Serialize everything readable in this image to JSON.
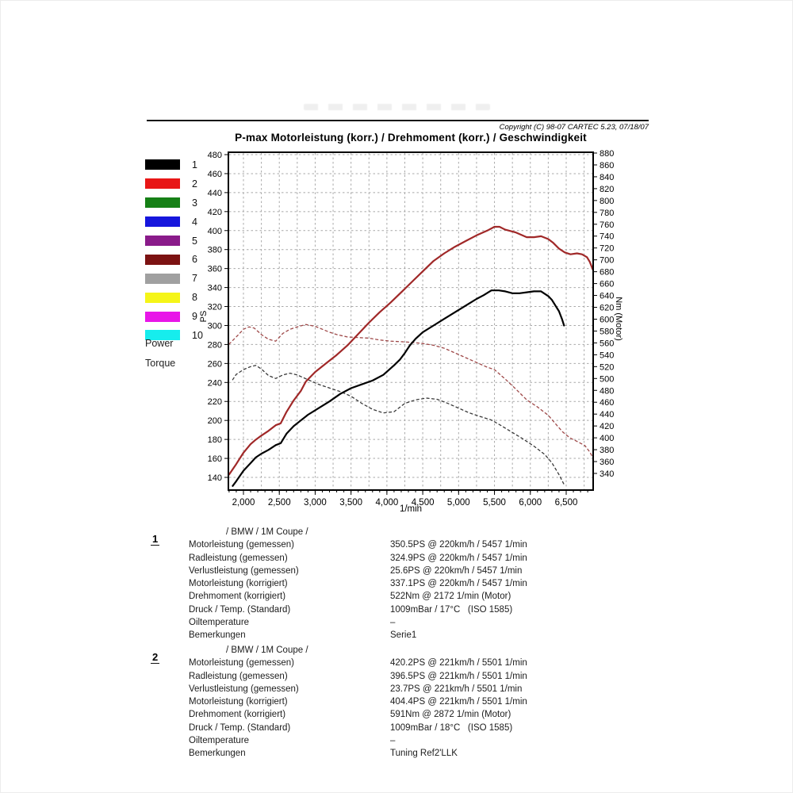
{
  "page": {
    "copyright": "Copyright (C) 98-07 CARTEC 5.23, 07/18/07",
    "title": "P-max Motorleistung (korr.) / Drehmoment (korr.) / Geschwindigkeit"
  },
  "legend": {
    "items": [
      {
        "label": "1",
        "color": "#000000"
      },
      {
        "label": "2",
        "color": "#e81616"
      },
      {
        "label": "3",
        "color": "#168016"
      },
      {
        "label": "4",
        "color": "#1616dd"
      },
      {
        "label": "5",
        "color": "#8a1b8a"
      },
      {
        "label": "6",
        "color": "#7c1212"
      },
      {
        "label": "7",
        "color": "#a0a0a0"
      },
      {
        "label": "8",
        "color": "#f5f518"
      },
      {
        "label": "9",
        "color": "#e816e8"
      },
      {
        "label": "10",
        "color": "#16eded"
      }
    ],
    "power_label": "Power",
    "torque_label": "Torque"
  },
  "chart_data": {
    "type": "line",
    "title": "P-max Motorleistung (korr.) / Drehmoment (korr.) / Geschwindigkeit",
    "x_label": "1/min",
    "y_left_label": "PS",
    "y_right_label": "Nm (Motor)",
    "x_range": [
      1790,
      6876
    ],
    "x_ticks": [
      {
        "value": 2000,
        "label": "2,000"
      },
      {
        "value": 2500,
        "label": "2,500"
      },
      {
        "value": 3000,
        "label": "3,000"
      },
      {
        "value": 3500,
        "label": "3,500"
      },
      {
        "value": 4000,
        "label": "4,000"
      },
      {
        "value": 4500,
        "label": "4,500"
      },
      {
        "value": 5000,
        "label": "5,000"
      },
      {
        "value": 5500,
        "label": "5,500"
      },
      {
        "value": 6000,
        "label": "6,000"
      },
      {
        "value": 6500,
        "label": "6,500"
      }
    ],
    "x_grid_step": 250,
    "x_minor_tick_step": 100,
    "y_left_axis": {
      "min": 140,
      "max": 480,
      "step": 20
    },
    "y_right_axis": {
      "min": 340,
      "max": 880,
      "step": 20
    },
    "grid": true,
    "legend_position": "left",
    "series": [
      {
        "name": "torque-stock",
        "run": 1,
        "unit": "Nm",
        "axis": "right",
        "style": "dashed",
        "color": "#3a3a3a",
        "points": [
          [
            1850,
            498
          ],
          [
            1900,
            507
          ],
          [
            2000,
            515
          ],
          [
            2100,
            520
          ],
          [
            2172,
            522
          ],
          [
            2250,
            516
          ],
          [
            2350,
            505
          ],
          [
            2450,
            500
          ],
          [
            2550,
            506
          ],
          [
            2650,
            509
          ],
          [
            2750,
            506
          ],
          [
            2900,
            498
          ],
          [
            3050,
            490
          ],
          [
            3200,
            484
          ],
          [
            3350,
            478
          ],
          [
            3500,
            470
          ],
          [
            3650,
            458
          ],
          [
            3800,
            448
          ],
          [
            3950,
            442
          ],
          [
            4100,
            444
          ],
          [
            4250,
            458
          ],
          [
            4400,
            464
          ],
          [
            4550,
            467
          ],
          [
            4700,
            465
          ],
          [
            4850,
            458
          ],
          [
            5000,
            450
          ],
          [
            5150,
            442
          ],
          [
            5300,
            436
          ],
          [
            5457,
            430
          ],
          [
            5600,
            420
          ],
          [
            5750,
            409
          ],
          [
            5900,
            398
          ],
          [
            6050,
            386
          ],
          [
            6200,
            372
          ],
          [
            6300,
            358
          ],
          [
            6400,
            338
          ],
          [
            6480,
            319
          ]
        ]
      },
      {
        "name": "torque-tuned",
        "run": 2,
        "unit": "Nm",
        "axis": "right",
        "style": "dashed",
        "color": "#9e4848",
        "points": [
          [
            1800,
            558
          ],
          [
            1900,
            570
          ],
          [
            2000,
            583
          ],
          [
            2080,
            587
          ],
          [
            2150,
            585
          ],
          [
            2250,
            574
          ],
          [
            2350,
            566
          ],
          [
            2450,
            563
          ],
          [
            2550,
            576
          ],
          [
            2650,
            583
          ],
          [
            2750,
            587
          ],
          [
            2870,
            591
          ],
          [
            3000,
            588
          ],
          [
            3100,
            583
          ],
          [
            3200,
            578
          ],
          [
            3300,
            574
          ],
          [
            3450,
            570
          ],
          [
            3600,
            569
          ],
          [
            3750,
            568
          ],
          [
            3900,
            565
          ],
          [
            4050,
            563
          ],
          [
            4200,
            562
          ],
          [
            4350,
            561
          ],
          [
            4500,
            559
          ],
          [
            4650,
            556
          ],
          [
            4800,
            551
          ],
          [
            4950,
            543
          ],
          [
            5100,
            535
          ],
          [
            5250,
            527
          ],
          [
            5400,
            519
          ],
          [
            5500,
            515
          ],
          [
            5650,
            499
          ],
          [
            5800,
            482
          ],
          [
            5950,
            464
          ],
          [
            6100,
            452
          ],
          [
            6250,
            438
          ],
          [
            6350,
            424
          ],
          [
            6450,
            410
          ],
          [
            6550,
            400
          ],
          [
            6650,
            394
          ],
          [
            6760,
            387
          ],
          [
            6830,
            376
          ],
          [
            6870,
            367
          ]
        ]
      },
      {
        "name": "power-stock",
        "run": 1,
        "unit": "PS",
        "axis": "left",
        "style": "solid",
        "color": "#000000",
        "points": [
          [
            1850,
            131
          ],
          [
            1900,
            136
          ],
          [
            2000,
            147
          ],
          [
            2100,
            155
          ],
          [
            2172,
            161
          ],
          [
            2250,
            165
          ],
          [
            2350,
            169
          ],
          [
            2450,
            174
          ],
          [
            2520,
            176
          ],
          [
            2600,
            186
          ],
          [
            2700,
            194
          ],
          [
            2800,
            200
          ],
          [
            2900,
            206
          ],
          [
            3050,
            213
          ],
          [
            3200,
            220
          ],
          [
            3350,
            228
          ],
          [
            3500,
            234
          ],
          [
            3650,
            238
          ],
          [
            3800,
            242
          ],
          [
            3950,
            248
          ],
          [
            4100,
            258
          ],
          [
            4180,
            264
          ],
          [
            4250,
            271
          ],
          [
            4320,
            279
          ],
          [
            4400,
            286
          ],
          [
            4500,
            293
          ],
          [
            4650,
            300
          ],
          [
            4800,
            307
          ],
          [
            4950,
            314
          ],
          [
            5100,
            321
          ],
          [
            5250,
            328
          ],
          [
            5350,
            332
          ],
          [
            5457,
            337
          ],
          [
            5560,
            337
          ],
          [
            5650,
            336
          ],
          [
            5750,
            334
          ],
          [
            5850,
            334
          ],
          [
            5950,
            335
          ],
          [
            6050,
            336
          ],
          [
            6150,
            336
          ],
          [
            6250,
            331
          ],
          [
            6300,
            327
          ],
          [
            6350,
            321
          ],
          [
            6400,
            315
          ],
          [
            6440,
            307
          ],
          [
            6470,
            300
          ]
        ]
      },
      {
        "name": "power-tuned",
        "run": 2,
        "unit": "PS",
        "axis": "left",
        "style": "solid",
        "color": "#a02828",
        "points": [
          [
            1800,
            143
          ],
          [
            1900,
            154
          ],
          [
            2000,
            166
          ],
          [
            2100,
            175
          ],
          [
            2160,
            179
          ],
          [
            2250,
            184
          ],
          [
            2350,
            189
          ],
          [
            2450,
            195
          ],
          [
            2520,
            197
          ],
          [
            2600,
            209
          ],
          [
            2700,
            221
          ],
          [
            2800,
            231
          ],
          [
            2870,
            241
          ],
          [
            3000,
            251
          ],
          [
            3100,
            257
          ],
          [
            3200,
            263
          ],
          [
            3300,
            269
          ],
          [
            3450,
            279
          ],
          [
            3600,
            291
          ],
          [
            3750,
            303
          ],
          [
            3900,
            314
          ],
          [
            4050,
            324
          ],
          [
            4200,
            335
          ],
          [
            4350,
            346
          ],
          [
            4500,
            357
          ],
          [
            4650,
            368
          ],
          [
            4800,
            376
          ],
          [
            4950,
            383
          ],
          [
            5100,
            389
          ],
          [
            5250,
            395
          ],
          [
            5400,
            400
          ],
          [
            5500,
            404
          ],
          [
            5570,
            404
          ],
          [
            5650,
            401
          ],
          [
            5800,
            398
          ],
          [
            5950,
            393
          ],
          [
            6050,
            393
          ],
          [
            6150,
            394
          ],
          [
            6250,
            391
          ],
          [
            6320,
            387
          ],
          [
            6400,
            381
          ],
          [
            6480,
            377
          ],
          [
            6560,
            375
          ],
          [
            6650,
            376
          ],
          [
            6720,
            375
          ],
          [
            6790,
            372
          ],
          [
            6830,
            367
          ],
          [
            6870,
            359
          ]
        ]
      }
    ]
  },
  "results": {
    "sections": [
      {
        "number": "1",
        "header": "/ BMW / 1M Coupe /",
        "rows": [
          {
            "label": "Motorleistung (gemessen)",
            "value": "350.5PS @ 220km/h / 5457 1/min"
          },
          {
            "label": "Radleistung (gemessen)",
            "value": "324.9PS @ 220km/h / 5457 1/min"
          },
          {
            "label": "Verlustleistung (gemessen)",
            "value": "25.6PS @ 220km/h / 5457 1/min"
          },
          {
            "label": "Motorleistung (korrigiert)",
            "value": "337.1PS @ 220km/h / 5457 1/min"
          },
          {
            "label": "Drehmoment (korrigiert)",
            "value": "522Nm @ 2172 1/min (Motor)"
          },
          {
            "label": "Druck / Temp. (Standard)",
            "value": "1009mBar / 17°C   (ISO 1585)"
          },
          {
            "label": "Oiltemperature",
            "value": "–"
          },
          {
            "label": "Bemerkungen",
            "value": "Serie1"
          }
        ]
      },
      {
        "number": "2",
        "header": "/ BMW / 1M Coupe /",
        "rows": [
          {
            "label": "Motorleistung (gemessen)",
            "value": "420.2PS @ 221km/h / 5501 1/min"
          },
          {
            "label": "Radleistung (gemessen)",
            "value": "396.5PS @ 221km/h / 5501 1/min"
          },
          {
            "label": "Verlustleistung (gemessen)",
            "value": "23.7PS @ 221km/h / 5501 1/min"
          },
          {
            "label": "Motorleistung (korrigiert)",
            "value": "404.4PS @ 221km/h / 5501 1/min"
          },
          {
            "label": "Drehmoment (korrigiert)",
            "value": "591Nm @ 2872 1/min (Motor)"
          },
          {
            "label": "Druck / Temp. (Standard)",
            "value": "1009mBar / 18°C   (ISO 1585)"
          },
          {
            "label": "Oiltemperature",
            "value": "–"
          },
          {
            "label": "Bemerkungen",
            "value": "Tuning Ref2'LLK"
          }
        ]
      }
    ]
  }
}
